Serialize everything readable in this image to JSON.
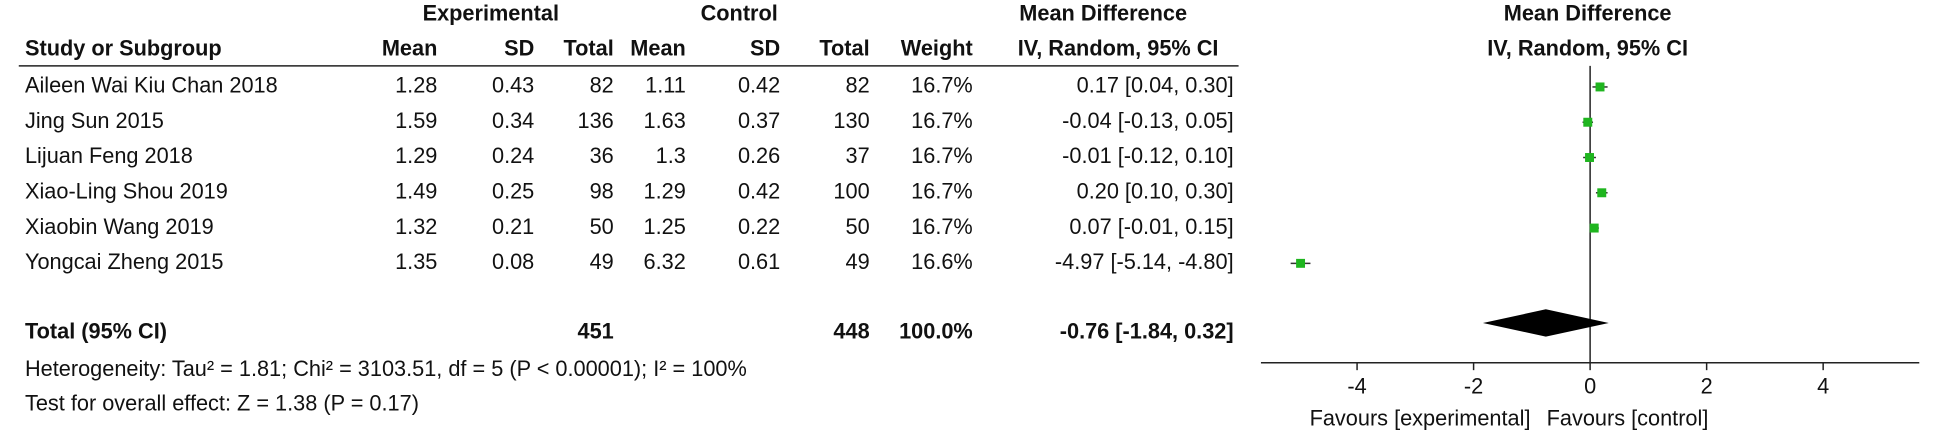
{
  "chart_data": {
    "type": "forest",
    "color": "#1fb51f",
    "headers": {
      "experimental": "Experimental",
      "control": "Control",
      "mean_difference": "Mean Difference",
      "study": "Study or Subgroup",
      "mean": "Mean",
      "sd": "SD",
      "total": "Total",
      "weight": "Weight",
      "method": "IV, Random, 95% CI"
    },
    "rows": [
      {
        "study": "Aileen Wai Kiu Chan 2018",
        "exp_mean": 1.28,
        "exp_sd": 0.43,
        "exp_total": 82,
        "ctl_mean": 1.11,
        "ctl_sd": 0.42,
        "ctl_total": 82,
        "weight": 16.7,
        "weight_label": "16.7%",
        "md": 0.17,
        "ci_low": 0.04,
        "ci_high": 0.3,
        "ci_label": "0.17 [0.04, 0.30]"
      },
      {
        "study": "Jing Sun 2015",
        "exp_mean": 1.59,
        "exp_sd": 0.34,
        "exp_total": 136,
        "ctl_mean": 1.63,
        "ctl_sd": 0.37,
        "ctl_total": 130,
        "weight": 16.7,
        "weight_label": "16.7%",
        "md": -0.04,
        "ci_low": -0.13,
        "ci_high": 0.05,
        "ci_label": "-0.04 [-0.13, 0.05]"
      },
      {
        "study": "Lijuan Feng 2018",
        "exp_mean": 1.29,
        "exp_sd": 0.24,
        "exp_total": 36,
        "ctl_mean": 1.3,
        "ctl_sd": 0.26,
        "ctl_total": 37,
        "weight": 16.7,
        "weight_label": "16.7%",
        "md": -0.01,
        "ci_low": -0.12,
        "ci_high": 0.1,
        "ci_label": "-0.01 [-0.12, 0.10]"
      },
      {
        "study": "Xiao-Ling Shou 2019",
        "exp_mean": 1.49,
        "exp_sd": 0.25,
        "exp_total": 98,
        "ctl_mean": 1.29,
        "ctl_sd": 0.42,
        "ctl_total": 100,
        "weight": 16.7,
        "weight_label": "16.7%",
        "md": 0.2,
        "ci_low": 0.1,
        "ci_high": 0.3,
        "ci_label": "0.20 [0.10, 0.30]"
      },
      {
        "study": "Xiaobin Wang 2019",
        "exp_mean": 1.32,
        "exp_sd": 0.21,
        "exp_total": 50,
        "ctl_mean": 1.25,
        "ctl_sd": 0.22,
        "ctl_total": 50,
        "weight": 16.7,
        "weight_label": "16.7%",
        "md": 0.07,
        "ci_low": -0.01,
        "ci_high": 0.15,
        "ci_label": "0.07 [-0.01, 0.15]"
      },
      {
        "study": "Yongcai Zheng 2015",
        "exp_mean": 1.35,
        "exp_sd": 0.08,
        "exp_total": 49,
        "ctl_mean": 6.32,
        "ctl_sd": 0.61,
        "ctl_total": 49,
        "weight": 16.6,
        "weight_label": "16.6%",
        "md": -4.97,
        "ci_low": -5.14,
        "ci_high": -4.8,
        "ci_label": "-4.97 [-5.14, -4.80]"
      }
    ],
    "total": {
      "study": "Total (95% CI)",
      "exp_total": 451,
      "ctl_total": 448,
      "weight": 100.0,
      "weight_label": "100.0%",
      "md": -0.76,
      "ci_low": -1.84,
      "ci_high": 0.32,
      "ci_label": "-0.76 [-1.84, 0.32]"
    },
    "heterogeneity": "Heterogeneity: Tau² = 1.81; Chi² = 3103.51, df = 5 (P < 0.00001); I² = 100%",
    "overall_effect": "Test for overall effect: Z = 1.38 (P = 0.17)",
    "xlim": [
      -5.65,
      5.65
    ],
    "xticks": [
      -4,
      -2,
      0,
      2,
      4
    ],
    "favours_left": "Favours [experimental]",
    "favours_right": "Favours [control]"
  }
}
